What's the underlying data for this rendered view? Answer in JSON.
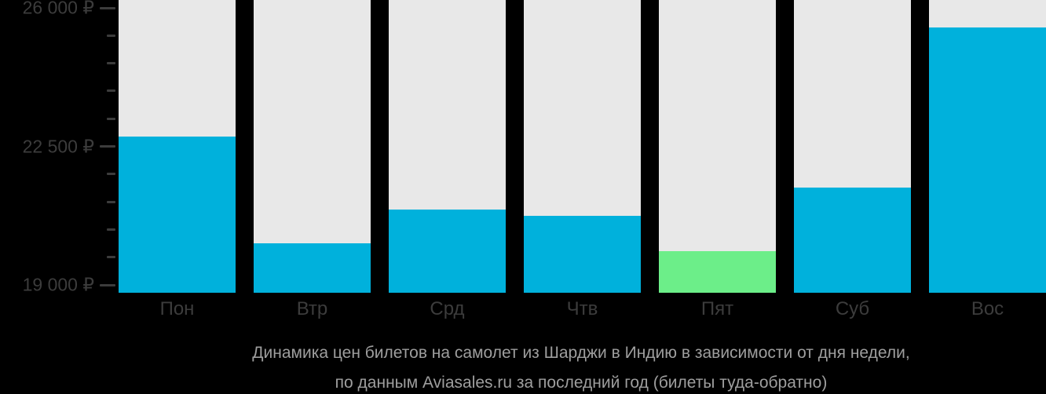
{
  "chart_data": {
    "type": "bar",
    "title": "",
    "categories": [
      "Пон",
      "Втр",
      "Срд",
      "Чтв",
      "Пят",
      "Суб",
      "Вос"
    ],
    "values": [
      22750,
      20050,
      20900,
      20750,
      19850,
      21450,
      25500
    ],
    "highlight_index": 4,
    "currency": "₽",
    "ylim": [
      18800,
      26000
    ],
    "yticks_major": [
      {
        "value": 26000,
        "label": "26 000 ₽"
      },
      {
        "value": 22500,
        "label": "22 500 ₽"
      },
      {
        "value": 19000,
        "label": "19 000 ₽"
      }
    ],
    "ytick_minor_step": 700,
    "grid": false,
    "legend": "none",
    "colors": {
      "bar": "#00b1dc",
      "bar_highlight": "#6cee89",
      "bar_track": "#e8e8e8",
      "axis_text": "#3c3c3c",
      "tick": "#3c3c3c",
      "background": "#000000",
      "caption_text": "#9e9e9e"
    }
  },
  "caption": {
    "line1": "Динамика цен билетов на самолет из Шарджи в Индию в зависимости от дня недели,",
    "line2": "по данным Aviasales.ru за последний год (билеты туда-обратно)"
  }
}
